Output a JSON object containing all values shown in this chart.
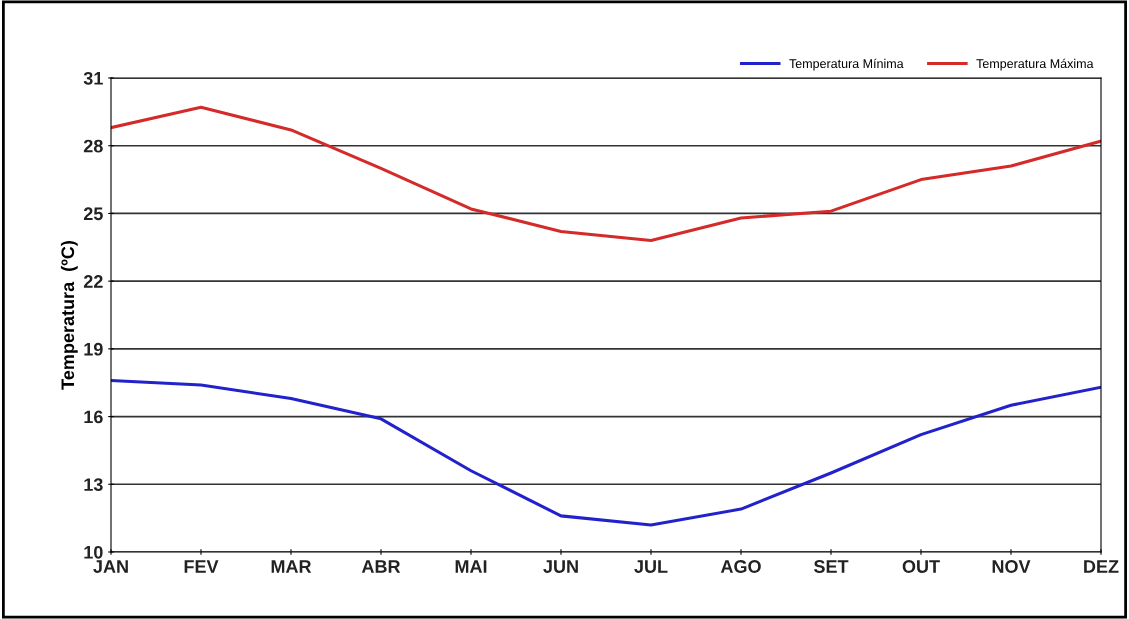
{
  "chart_data": {
    "type": "line",
    "ylabel": "Temperatura  (ºC)",
    "categories": [
      "JAN",
      "FEV",
      "MAR",
      "ABR",
      "MAI",
      "JUN",
      "JUL",
      "AGO",
      "SET",
      "OUT",
      "NOV",
      "DEZ"
    ],
    "series": [
      {
        "name": "Temperatura Mínima",
        "color": "#2222cc",
        "values": [
          17.6,
          17.4,
          16.8,
          15.9,
          13.6,
          11.6,
          11.2,
          11.9,
          13.5,
          15.2,
          16.5,
          17.3
        ]
      },
      {
        "name": "Temperatura Máxima",
        "color": "#d42a2a",
        "values": [
          28.8,
          29.7,
          28.7,
          27.0,
          25.2,
          24.2,
          23.8,
          24.8,
          25.1,
          26.5,
          27.1,
          28.2
        ]
      }
    ],
    "ylim": [
      10,
      31
    ],
    "yticks": [
      10,
      13,
      16,
      19,
      22,
      25,
      28,
      31
    ],
    "grid": "y",
    "legend": "top right",
    "marker": "none",
    "line_style": "solid"
  }
}
